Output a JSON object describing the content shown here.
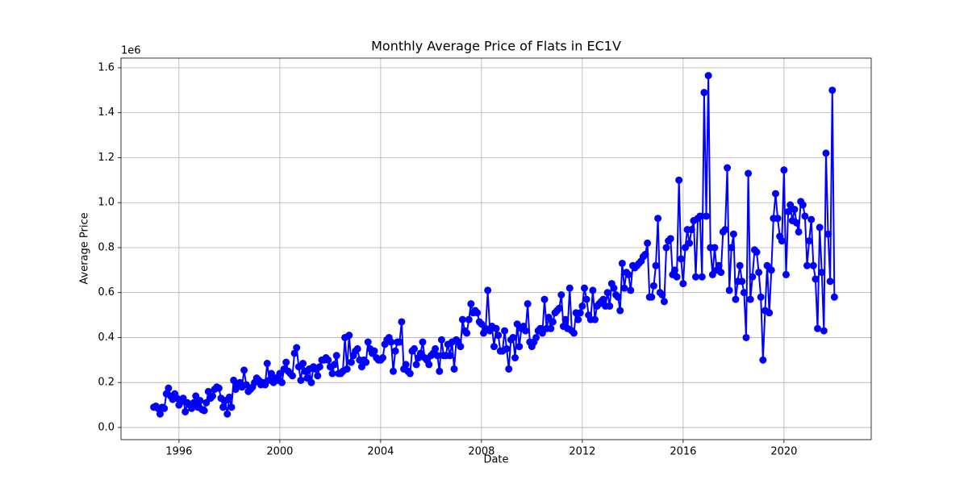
{
  "chart_data": {
    "type": "line",
    "title": "Monthly Average Price of Flats in EC1V",
    "x_label": "Date",
    "y_label": "Average Price",
    "y_offset_label": "1e6",
    "grid": true,
    "xlim": [
      1993.7,
      2023.46
    ],
    "xticks": [
      1996,
      2000,
      2004,
      2008,
      2012,
      2016,
      2020
    ],
    "ylim": [
      -54000,
      1643000
    ],
    "yticks": [
      {
        "value": 0,
        "label": "0.0"
      },
      {
        "value": 200000,
        "label": "0.2"
      },
      {
        "value": 400000,
        "label": "0.4"
      },
      {
        "value": 600000,
        "label": "0.6"
      },
      {
        "value": 800000,
        "label": "0.8"
      },
      {
        "value": 1000000,
        "label": "1.0"
      },
      {
        "value": 1200000,
        "label": "1.2"
      },
      {
        "value": 1400000,
        "label": "1.4"
      },
      {
        "value": 1600000,
        "label": "1.6"
      }
    ],
    "x": [
      1995,
      1995.083,
      1995.167,
      1995.25,
      1995.333,
      1995.417,
      1995.5,
      1995.583,
      1995.667,
      1995.75,
      1995.833,
      1995.917,
      1996,
      1996.083,
      1996.167,
      1996.25,
      1996.333,
      1996.417,
      1996.5,
      1996.583,
      1996.667,
      1996.75,
      1996.833,
      1996.917,
      1997,
      1997.083,
      1997.167,
      1997.25,
      1997.333,
      1997.417,
      1997.5,
      1997.583,
      1997.667,
      1997.75,
      1997.833,
      1997.917,
      1998,
      1998.083,
      1998.167,
      1998.25,
      1998.333,
      1998.417,
      1998.5,
      1998.583,
      1998.667,
      1998.75,
      1998.833,
      1998.917,
      1999,
      1999.083,
      1999.167,
      1999.25,
      1999.333,
      1999.417,
      1999.5,
      1999.583,
      1999.667,
      1999.75,
      1999.833,
      1999.917,
      2000,
      2000.083,
      2000.167,
      2000.25,
      2000.333,
      2000.417,
      2000.5,
      2000.583,
      2000.667,
      2000.75,
      2000.833,
      2000.917,
      2001,
      2001.083,
      2001.167,
      2001.25,
      2001.333,
      2001.417,
      2001.5,
      2001.583,
      2001.667,
      2001.75,
      2001.833,
      2001.917,
      2002,
      2002.083,
      2002.167,
      2002.25,
      2002.333,
      2002.417,
      2002.5,
      2002.583,
      2002.667,
      2002.75,
      2002.833,
      2002.917,
      2003,
      2003.083,
      2003.167,
      2003.25,
      2003.333,
      2003.417,
      2003.5,
      2003.583,
      2003.667,
      2003.75,
      2003.833,
      2003.917,
      2004,
      2004.083,
      2004.167,
      2004.25,
      2004.333,
      2004.417,
      2004.5,
      2004.583,
      2004.667,
      2004.75,
      2004.833,
      2004.917,
      2005,
      2005.083,
      2005.167,
      2005.25,
      2005.333,
      2005.417,
      2005.5,
      2005.583,
      2005.667,
      2005.75,
      2005.833,
      2005.917,
      2006,
      2006.083,
      2006.167,
      2006.25,
      2006.333,
      2006.417,
      2006.5,
      2006.583,
      2006.667,
      2006.75,
      2006.833,
      2006.917,
      2007,
      2007.083,
      2007.167,
      2007.25,
      2007.333,
      2007.417,
      2007.5,
      2007.583,
      2007.667,
      2007.75,
      2007.833,
      2007.917,
      2008,
      2008.083,
      2008.167,
      2008.25,
      2008.333,
      2008.417,
      2008.5,
      2008.583,
      2008.667,
      2008.75,
      2008.833,
      2008.917,
      2009,
      2009.083,
      2009.167,
      2009.25,
      2009.333,
      2009.417,
      2009.5,
      2009.583,
      2009.667,
      2009.75,
      2009.833,
      2009.917,
      2010,
      2010.083,
      2010.167,
      2010.25,
      2010.333,
      2010.417,
      2010.5,
      2010.583,
      2010.667,
      2010.75,
      2010.833,
      2010.917,
      2011,
      2011.083,
      2011.167,
      2011.25,
      2011.333,
      2011.417,
      2011.5,
      2011.583,
      2011.667,
      2011.75,
      2011.833,
      2011.917,
      2012,
      2012.083,
      2012.167,
      2012.25,
      2012.333,
      2012.417,
      2012.5,
      2012.583,
      2012.667,
      2012.75,
      2012.833,
      2012.917,
      2013,
      2013.083,
      2013.167,
      2013.25,
      2013.333,
      2013.417,
      2013.5,
      2013.583,
      2013.667,
      2013.75,
      2013.833,
      2013.917,
      2014,
      2014.083,
      2014.167,
      2014.25,
      2014.333,
      2014.417,
      2014.5,
      2014.583,
      2014.667,
      2014.75,
      2014.833,
      2014.917,
      2015,
      2015.083,
      2015.167,
      2015.25,
      2015.333,
      2015.417,
      2015.5,
      2015.583,
      2015.667,
      2015.75,
      2015.833,
      2015.917,
      2016,
      2016.083,
      2016.167,
      2016.25,
      2016.333,
      2016.417,
      2016.5,
      2016.583,
      2016.667,
      2016.75,
      2016.833,
      2016.917,
      2017,
      2017.083,
      2017.167,
      2017.25,
      2017.333,
      2017.417,
      2017.5,
      2017.583,
      2017.667,
      2017.75,
      2017.833,
      2017.917,
      2018,
      2018.083,
      2018.167,
      2018.25,
      2018.333,
      2018.417,
      2018.5,
      2018.583,
      2018.667,
      2018.75,
      2018.833,
      2018.917,
      2019,
      2019.083,
      2019.167,
      2019.25,
      2019.333,
      2019.417,
      2019.5,
      2019.583,
      2019.667,
      2019.75,
      2019.833,
      2019.917,
      2020,
      2020.083,
      2020.167,
      2020.25,
      2020.333,
      2020.417,
      2020.5,
      2020.583,
      2020.667,
      2020.75,
      2020.833,
      2020.917,
      2021,
      2021.083,
      2021.167,
      2021.25,
      2021.333,
      2021.417,
      2021.5,
      2021.583,
      2021.667,
      2021.75,
      2021.833,
      2021.917,
      2022
    ],
    "series": [
      {
        "color": "#0000ff",
        "values": [
          90000,
          95000,
          85000,
          60000,
          90000,
          85000,
          150000,
          175000,
          140000,
          125000,
          150000,
          130000,
          100000,
          115000,
          130000,
          70000,
          110000,
          100000,
          85000,
          110000,
          140000,
          90000,
          120000,
          80000,
          75000,
          110000,
          160000,
          130000,
          140000,
          170000,
          180000,
          175000,
          130000,
          90000,
          120000,
          60000,
          135000,
          90000,
          210000,
          170000,
          190000,
          200000,
          180000,
          255000,
          190000,
          160000,
          170000,
          180000,
          200000,
          220000,
          210000,
          190000,
          200000,
          190000,
          285000,
          210000,
          240000,
          200000,
          220000,
          210000,
          240000,
          200000,
          260000,
          290000,
          250000,
          240000,
          230000,
          330000,
          355000,
          270000,
          210000,
          285000,
          250000,
          220000,
          260000,
          200000,
          270000,
          260000,
          230000,
          270000,
          300000,
          300000,
          310000,
          300000,
          270000,
          240000,
          280000,
          320000,
          240000,
          240000,
          250000,
          400000,
          260000,
          410000,
          290000,
          320000,
          340000,
          350000,
          300000,
          270000,
          300000,
          290000,
          380000,
          350000,
          330000,
          340000,
          310000,
          300000,
          300000,
          310000,
          370000,
          390000,
          400000,
          380000,
          250000,
          340000,
          380000,
          380000,
          470000,
          260000,
          280000,
          250000,
          240000,
          340000,
          350000,
          280000,
          310000,
          330000,
          380000,
          310000,
          300000,
          280000,
          320000,
          330000,
          350000,
          320000,
          250000,
          390000,
          320000,
          320000,
          370000,
          320000,
          380000,
          260000,
          390000,
          380000,
          360000,
          480000,
          430000,
          420000,
          480000,
          550000,
          510000,
          520000,
          510000,
          470000,
          460000,
          420000,
          440000,
          610000,
          430000,
          450000,
          360000,
          440000,
          410000,
          340000,
          340000,
          430000,
          350000,
          260000,
          390000,
          400000,
          310000,
          460000,
          360000,
          440000,
          450000,
          430000,
          550000,
          380000,
          360000,
          380000,
          400000,
          430000,
          440000,
          420000,
          570000,
          440000,
          490000,
          440000,
          470000,
          510000,
          520000,
          530000,
          590000,
          450000,
          480000,
          440000,
          620000,
          430000,
          420000,
          510000,
          480000,
          510000,
          540000,
          620000,
          570000,
          500000,
          480000,
          610000,
          480000,
          540000,
          550000,
          560000,
          570000,
          540000,
          600000,
          540000,
          640000,
          620000,
          590000,
          580000,
          520000,
          730000,
          620000,
          690000,
          680000,
          610000,
          720000,
          710000,
          720000,
          730000,
          740000,
          760000,
          770000,
          820000,
          580000,
          580000,
          630000,
          720000,
          930000,
          600000,
          590000,
          560000,
          800000,
          830000,
          840000,
          680000,
          700000,
          670000,
          1100000,
          750000,
          640000,
          800000,
          880000,
          820000,
          880000,
          920000,
          670000,
          930000,
          940000,
          670000,
          1490000,
          940000,
          1565000,
          800000,
          680000,
          800000,
          700000,
          720000,
          690000,
          870000,
          880000,
          1155000,
          610000,
          800000,
          860000,
          570000,
          650000,
          720000,
          650000,
          600000,
          400000,
          1130000,
          570000,
          670000,
          790000,
          780000,
          690000,
          580000,
          300000,
          520000,
          720000,
          510000,
          700000,
          930000,
          1040000,
          930000,
          850000,
          830000,
          1145000,
          680000,
          960000,
          990000,
          920000,
          970000,
          910000,
          870000,
          1005000,
          990000,
          940000,
          720000,
          830000,
          925000,
          720000,
          660000,
          440000,
          890000,
          690000,
          430000,
          1220000,
          860000,
          650000,
          1500000,
          580000
        ]
      }
    ]
  }
}
